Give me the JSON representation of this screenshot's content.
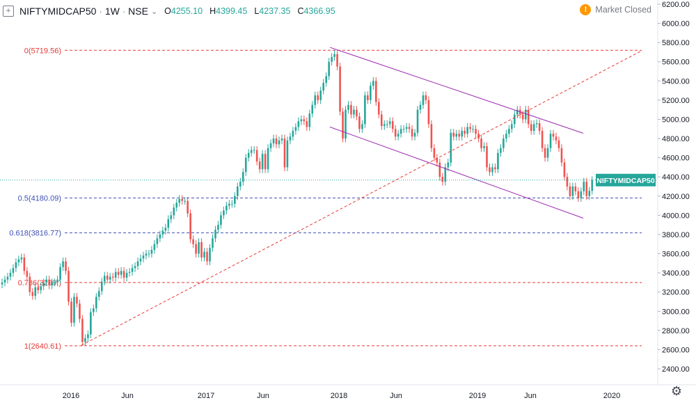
{
  "header": {
    "symbol": "NIFTYMIDCAP50",
    "interval": "1W",
    "exchange": "NSE",
    "ohlc": [
      {
        "k": "O",
        "v": "4255.10"
      },
      {
        "k": "H",
        "v": "4399.45"
      },
      {
        "k": "L",
        "v": "4237.35"
      },
      {
        "k": "C",
        "v": "4366.95"
      }
    ]
  },
  "status": {
    "text": "Market Closed",
    "alert": "!"
  },
  "colors": {
    "up": "#26a69a",
    "down": "#ef5350",
    "fib_red": "#e53935",
    "fib_blue": "#3f51b5",
    "channel": "#9c27b0",
    "trend": "#e53935",
    "price_line": "#26a69a",
    "axis_text": "#131722"
  },
  "chart_data": {
    "type": "candlestick",
    "symbol": "NIFTYMIDCAP50",
    "interval": "1W",
    "x_axis_labels": [
      "2016",
      "Jun",
      "2017",
      "Jun",
      "2018",
      "Jun",
      "2019",
      "Jun",
      "2020"
    ],
    "y_axis": {
      "ticks": [
        2400,
        2600,
        2800,
        3000,
        3200,
        3400,
        3600,
        3800,
        4000,
        4200,
        4400,
        4600,
        4800,
        5000,
        5200,
        5400,
        5600,
        5800,
        6000,
        6200
      ],
      "tick_labels": [
        "2400.00",
        "2600.00",
        "2800.00",
        "3000.00",
        "3200.00",
        "3400.00",
        "3600.00",
        "3800.00",
        "4000.00",
        "4200.00",
        "4400.00",
        "4600.00",
        "4800.00",
        "5000.00",
        "5200.00",
        "5400.00",
        "5600.00",
        "5800.00",
        "6000.00",
        "6200.00"
      ],
      "range": [
        2300,
        6250
      ]
    },
    "last_price": {
      "label": "NIFTYMIDCAP50",
      "value": "4366.95",
      "price": 4366.95
    },
    "fib_levels": [
      {
        "label": "0(5719.56)",
        "price": 5719.56,
        "color": "red"
      },
      {
        "label": "0.5(4180.09)",
        "price": 4180.09,
        "color": "blue"
      },
      {
        "label": "0.618(3816.77)",
        "price": 3816.77,
        "color": "blue"
      },
      {
        "label": "0.786(3299.)",
        "price": 3299.0,
        "color": "red"
      },
      {
        "label": "1(2640.61)",
        "price": 2640.61,
        "color": "red"
      }
    ],
    "closes": [
      3300,
      3330,
      3360,
      3400,
      3450,
      3510,
      3540,
      3560,
      3420,
      3360,
      3200,
      3160,
      3250,
      3220,
      3260,
      3300,
      3330,
      3270,
      3300,
      3300,
      3330,
      3460,
      3520,
      3420,
      3100,
      2880,
      3150,
      3080,
      2920,
      2680,
      2720,
      2760,
      2990,
      3030,
      3150,
      3210,
      3310,
      3370,
      3330,
      3360,
      3350,
      3410,
      3380,
      3420,
      3350,
      3400,
      3410,
      3450,
      3470,
      3520,
      3550,
      3580,
      3600,
      3600,
      3640,
      3700,
      3760,
      3800,
      3840,
      3870,
      3960,
      4000,
      4080,
      4130,
      4170,
      4150,
      4150,
      4020,
      3750,
      3700,
      3600,
      3720,
      3560,
      3620,
      3520,
      3660,
      3760,
      3850,
      3900,
      4000,
      4050,
      4100,
      4120,
      4120,
      4200,
      4300,
      4350,
      4450,
      4600,
      4650,
      4680,
      4680,
      4560,
      4480,
      4640,
      4480,
      4700,
      4750,
      4800,
      4740,
      4780,
      4800,
      4500,
      4780,
      4820,
      4880,
      4920,
      4980,
      5000,
      4980,
      4920,
      5060,
      5150,
      5250,
      5200,
      5300,
      5380,
      5450,
      5600,
      5650,
      5680,
      5550,
      5080,
      4800,
      5100,
      5150,
      5050,
      5100,
      5030,
      4900,
      4950,
      5250,
      5200,
      5350,
      5400,
      5180,
      5050,
      4930,
      4950,
      4950,
      4980,
      4900,
      4820,
      4850,
      4900,
      4900,
      4920,
      4900,
      4820,
      4860,
      5100,
      5150,
      5250,
      5200,
      4950,
      4700,
      4600,
      4550,
      4400,
      4350,
      4500,
      4550,
      4860,
      4820,
      4850,
      4820,
      4880,
      4850,
      4920,
      4900,
      4900,
      4850,
      4800,
      4700,
      4720,
      4500,
      4450,
      4500,
      4480,
      4650,
      4700,
      4800,
      4850,
      4900,
      4950,
      5050,
      5100,
      5050,
      5000,
      5100,
      4950,
      4880,
      4950,
      4960,
      4880,
      4700,
      4600,
      4700,
      4850,
      4820,
      4780,
      4700,
      4550,
      4400,
      4300,
      4200,
      4300,
      4250,
      4180,
      4250,
      4350,
      4200,
      4255,
      4366.95
    ]
  }
}
